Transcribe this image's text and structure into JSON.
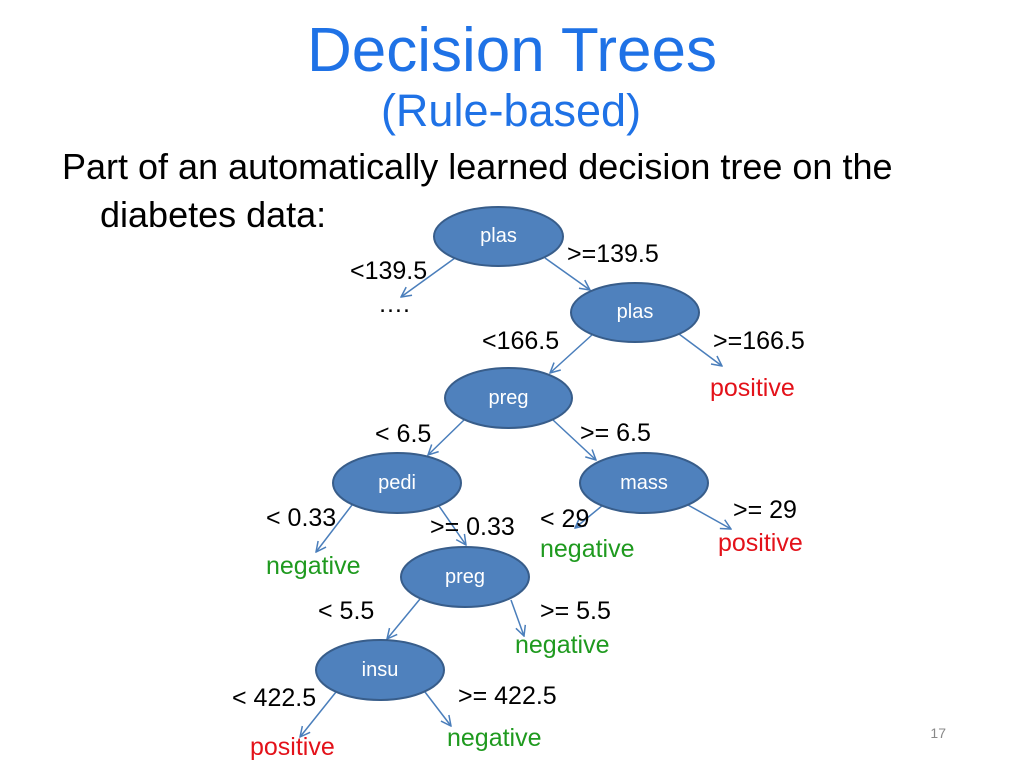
{
  "title": "Decision Trees",
  "subtitle": "(Rule-based)",
  "body": {
    "lines": [
      "Part of an automatically learned decision tree on the",
      "diabetes data:"
    ]
  },
  "tree": {
    "label": "plas",
    "left": {
      "condition": "<139.5",
      "leaf": "…."
    },
    "right": {
      "condition": ">=139.5",
      "node": {
        "label": "plas",
        "left": {
          "condition": "<166.5",
          "node": {
            "label": "preg",
            "left": {
              "condition": "< 6.5",
              "node": {
                "label": "pedi",
                "left": {
                  "condition": "< 0.33",
                  "leaf": "negative"
                },
                "right": {
                  "condition": ">= 0.33",
                  "node": {
                    "label": "preg",
                    "left": {
                      "condition": "< 5.5",
                      "node": {
                        "label": "insu",
                        "left": {
                          "condition": "< 422.5",
                          "leaf": "positive"
                        },
                        "right": {
                          "condition": ">= 422.5",
                          "leaf": "negative"
                        }
                      }
                    },
                    "right": {
                      "condition": ">= 5.5",
                      "leaf": "negative"
                    }
                  }
                }
              }
            },
            "right": {
              "condition": ">= 6.5",
              "node": {
                "label": "mass",
                "left": {
                  "condition": "< 29",
                  "leaf": "negative"
                },
                "right": {
                  "condition": ">= 29",
                  "leaf": "positive"
                }
              }
            }
          }
        },
        "right": {
          "condition": ">=166.5",
          "leaf": "positive"
        }
      }
    }
  },
  "slide_number": "17",
  "colors": {
    "title": "#1F72E6",
    "node_fill": "#4F81BD",
    "node_stroke": "#385D8A",
    "edge": "#4A7EBB",
    "positive": "#E3121A",
    "negative": "#1F9A1F",
    "slide_number": "#898989"
  }
}
